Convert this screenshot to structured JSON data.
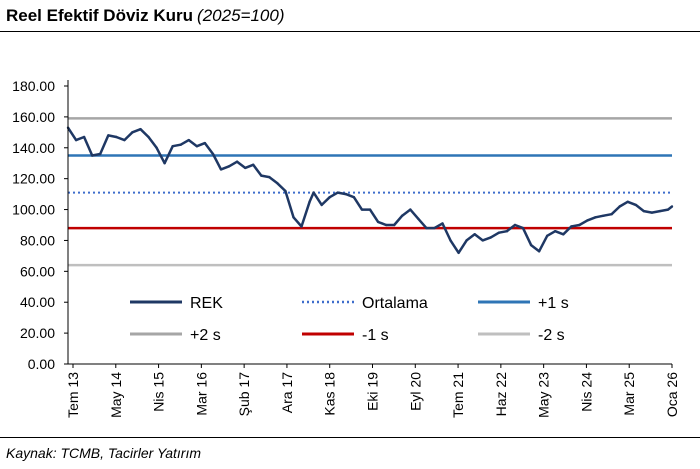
{
  "title": {
    "main": "Reel Efektif Döviz Kuru",
    "sub": "(2025=100)"
  },
  "source": "Kaynak: TCMB, Tacirler Yatırım",
  "chart_data": {
    "type": "line",
    "ylim": [
      0,
      180
    ],
    "yticks": [
      "0.00",
      "20.00",
      "40.00",
      "60.00",
      "80.00",
      "100.00",
      "120.00",
      "140.00",
      "160.00",
      "180.00"
    ],
    "xticks": [
      "Tem 13",
      "May 14",
      "Nis 15",
      "Mar 16",
      "Şub 17",
      "Ara 17",
      "Kas 18",
      "Eki 19",
      "Eyl 20",
      "Tem 21",
      "Haz 22",
      "May 23",
      "Nis 24",
      "Mar 25",
      "Oca 26"
    ],
    "legend_placement": "bottom-inside",
    "series": [
      {
        "name": "REK",
        "style": "solid",
        "color": "#1f3864",
        "x": [
          "2013-07",
          "2013-09",
          "2013-11",
          "2014-01",
          "2014-03",
          "2014-05",
          "2014-07",
          "2014-09",
          "2014-11",
          "2015-01",
          "2015-03",
          "2015-05",
          "2015-07",
          "2015-09",
          "2015-11",
          "2016-01",
          "2016-03",
          "2016-05",
          "2016-07",
          "2016-09",
          "2016-11",
          "2017-01",
          "2017-03",
          "2017-05",
          "2017-07",
          "2017-09",
          "2017-11",
          "2018-01",
          "2018-03",
          "2018-05",
          "2018-07",
          "2018-08",
          "2018-10",
          "2018-12",
          "2019-02",
          "2019-04",
          "2019-06",
          "2019-08",
          "2019-10",
          "2019-12",
          "2020-02",
          "2020-04",
          "2020-06",
          "2020-08",
          "2020-10",
          "2020-12",
          "2021-02",
          "2021-04",
          "2021-06",
          "2021-08",
          "2021-10",
          "2021-12",
          "2022-02",
          "2022-04",
          "2022-06",
          "2022-08",
          "2022-10",
          "2022-12",
          "2023-02",
          "2023-04",
          "2023-06",
          "2023-08",
          "2023-10",
          "2023-12",
          "2024-02",
          "2024-04",
          "2024-06",
          "2024-08",
          "2024-10",
          "2024-12",
          "2025-02",
          "2025-04",
          "2025-06",
          "2025-08",
          "2025-10",
          "2025-12",
          "2026-01"
        ],
        "values": [
          153,
          145,
          147,
          135,
          136,
          148,
          147,
          145,
          150,
          152,
          147,
          140,
          130,
          141,
          142,
          145,
          141,
          143,
          136,
          126,
          128,
          131,
          127,
          129,
          122,
          121,
          117,
          112,
          95,
          89,
          105,
          111,
          103,
          108,
          111,
          110,
          108,
          100,
          100,
          92,
          90,
          90,
          96,
          100,
          94,
          88,
          88,
          91,
          80,
          72,
          80,
          84,
          80,
          82,
          85,
          86,
          90,
          88,
          77,
          73,
          83,
          86,
          84,
          89,
          90,
          93,
          95,
          96,
          97,
          102,
          105,
          103,
          99,
          98,
          99,
          100,
          102
        ]
      },
      {
        "name": "Ortalama",
        "style": "dotted",
        "color": "#3d6dcc",
        "value": 111
      },
      {
        "name": "+1 s",
        "style": "solid",
        "color": "#2e75b6",
        "value": 135
      },
      {
        "name": "+2 s",
        "style": "solid",
        "color": "#a6a6a6",
        "value": 159
      },
      {
        "name": "-1 s",
        "style": "solid",
        "color": "#c00000",
        "value": 88
      },
      {
        "name": "-2 s",
        "style": "solid",
        "color": "#bfbfbf",
        "value": 64
      }
    ],
    "x_range": [
      "2013-07",
      "2026-01"
    ]
  }
}
